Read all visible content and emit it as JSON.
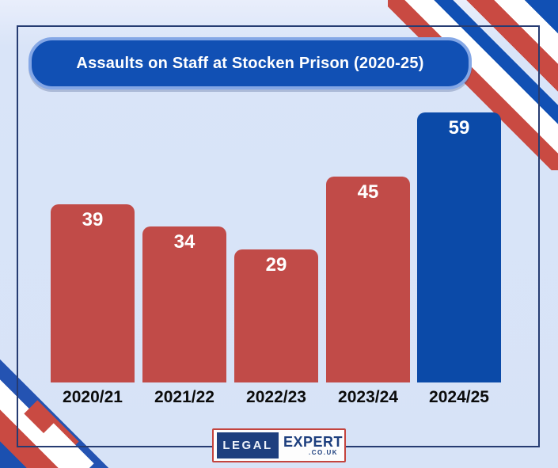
{
  "header": {
    "title": "Assaults on Staff at Stocken Prison (2020-25)"
  },
  "chart_data": {
    "type": "bar",
    "title": "Assaults on Staff at Stocken Prison (2020-25)",
    "categories": [
      "2020/21",
      "2021/22",
      "2022/23",
      "2023/24",
      "2024/25"
    ],
    "values": [
      39,
      34,
      29,
      45,
      59
    ],
    "bar_colors": [
      "#c14b48",
      "#c14b48",
      "#c14b48",
      "#c14b48",
      "#0b4aa8"
    ],
    "xlabel": "",
    "ylabel": "",
    "ylim": [
      0,
      62
    ],
    "grid": false,
    "legend_position": "none",
    "value_labels_shown": true
  },
  "colors": {
    "background": "#d7e3f7",
    "frame_border": "#263c72",
    "title_background": "#1150b4",
    "title_border": "#84a7e6",
    "bar_red": "#c14b48",
    "bar_blue": "#0b4aa8",
    "ribbon_red": "#c94a42",
    "ribbon_white": "#ffffff",
    "ribbon_blue": "#1150b4",
    "tick_label": "#0b0b0b",
    "logo_navy": "#1e3f7e",
    "logo_border_red": "#c4443e"
  },
  "logo": {
    "part_legal": "LEGAL",
    "part_expert": "EXPERT",
    "part_couk": ".CO.UK"
  }
}
